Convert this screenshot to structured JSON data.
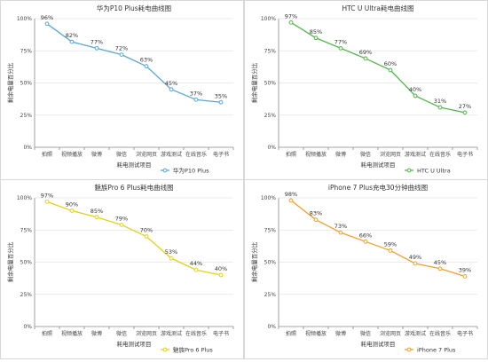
{
  "chart_data": [
    {
      "type": "line",
      "title": "华为P10 Plus耗电曲线图",
      "xlabel": "耗电测试项目",
      "ylabel": "剩余电量百分比",
      "categories": [
        "拍照",
        "视频播放",
        "微博",
        "微信",
        "浏览网页",
        "游戏测试",
        "在线音乐",
        "电子书"
      ],
      "series": [
        {
          "name": "华为P10 Plus",
          "values": [
            96,
            82,
            77,
            72,
            63,
            45,
            37,
            35
          ]
        }
      ],
      "ylim": [
        0,
        100
      ],
      "yticks": [
        "0%",
        "25%",
        "50%",
        "75%",
        "100%"
      ],
      "data_labels": [
        "96%",
        "82%",
        "77%",
        "72%",
        "63%",
        "45%",
        "37%",
        "35%"
      ],
      "color": "#5aa7d6",
      "legend_position": "bottom-right",
      "grid": true
    },
    {
      "type": "line",
      "title": "HTC U Ultra耗电曲线图",
      "xlabel": "耗电测试项目",
      "ylabel": "剩余电量百分比",
      "categories": [
        "拍照",
        "视频播放",
        "微博",
        "微信",
        "浏览网页",
        "游戏测试",
        "在线音乐",
        "电子书"
      ],
      "series": [
        {
          "name": "HTC U Ultra",
          "values": [
            97,
            85,
            77,
            69,
            60,
            40,
            31,
            27
          ]
        }
      ],
      "ylim": [
        0,
        100
      ],
      "yticks": [
        "0%",
        "25%",
        "50%",
        "75%",
        "100%"
      ],
      "data_labels": [
        "97%",
        "85%",
        "77%",
        "69%",
        "60%",
        "40%",
        "31%",
        "27%"
      ],
      "color": "#52b64a",
      "legend_position": "bottom-right",
      "grid": true
    },
    {
      "type": "line",
      "title": "魅族Pro 6 Plus耗电曲线图",
      "xlabel": "耗电测试项目",
      "ylabel": "剩余电量百分比",
      "categories": [
        "拍照",
        "视频播放",
        "微博",
        "微信",
        "浏览网页",
        "游戏测试",
        "在线音乐",
        "电子书"
      ],
      "series": [
        {
          "name": "魅族Pro 6 Plus",
          "values": [
            97,
            90,
            85,
            79,
            70,
            53,
            44,
            40
          ]
        }
      ],
      "ylim": [
        0,
        100
      ],
      "yticks": [
        "0%",
        "25%",
        "50%",
        "75%",
        "100%"
      ],
      "data_labels": [
        "97%",
        "90%",
        "85%",
        "79%",
        "70%",
        "53%",
        "44%",
        "40%"
      ],
      "color": "#e2d21a",
      "legend_position": "bottom-right",
      "grid": true
    },
    {
      "type": "line",
      "title": "iPhone 7 Plus充电30分钟曲线图",
      "xlabel": "耗电测试项目",
      "ylabel": "剩余电量百分比",
      "categories": [
        "拍照",
        "视频播放",
        "微博",
        "微信",
        "浏览网页",
        "游戏测试",
        "在线音乐",
        "电子书"
      ],
      "series": [
        {
          "name": "iPhone 7 Plus",
          "values": [
            98,
            83,
            73,
            66,
            59,
            49,
            45,
            39
          ]
        }
      ],
      "ylim": [
        0,
        100
      ],
      "yticks": [
        "0%",
        "25%",
        "50%",
        "75%",
        "100%"
      ],
      "data_labels": [
        "98%",
        "83%",
        "73%",
        "66%",
        "59%",
        "49%",
        "45%",
        "39%"
      ],
      "color": "#f0a12e",
      "legend_position": "bottom-right",
      "grid": true
    }
  ]
}
